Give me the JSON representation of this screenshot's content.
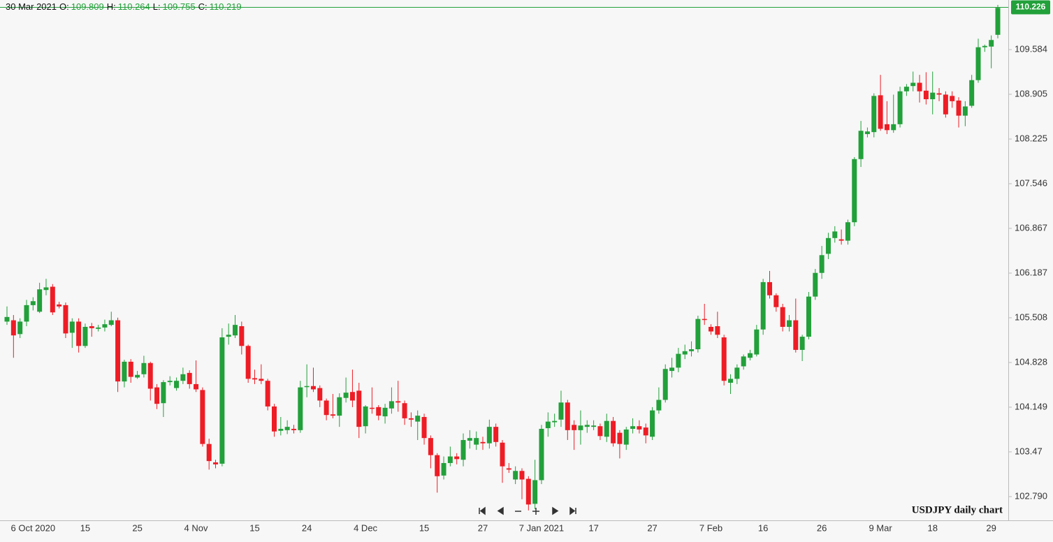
{
  "chart_data": {
    "type": "candlestick",
    "header_date": "30 Mar 2021",
    "header_labels": [
      "O:",
      "H:",
      "L:",
      "C:"
    ],
    "annotation": "USDJPY daily chart",
    "last_price": 110.226,
    "up_color": "#22a03a",
    "down_color": "#ee1c25",
    "last_price_color": "#22a03a",
    "ylim": [
      102.429,
      110.338
    ],
    "yticks": [
      {
        "value": 102.79,
        "label": "102.790"
      },
      103.47,
      104.149,
      104.828,
      105.508,
      106.187,
      106.867,
      107.546,
      108.225,
      108.905,
      109.584
    ],
    "categories": [
      null,
      null,
      null,
      null,
      "6 Oct 2020",
      null,
      null,
      null,
      null,
      null,
      null,
      null,
      "15",
      null,
      null,
      null,
      null,
      null,
      null,
      null,
      "25",
      null,
      null,
      null,
      null,
      null,
      null,
      null,
      null,
      "4 Nov",
      null,
      null,
      null,
      null,
      null,
      null,
      null,
      null,
      "15",
      null,
      null,
      null,
      null,
      null,
      null,
      null,
      "24",
      null,
      null,
      null,
      null,
      null,
      null,
      null,
      null,
      "4 Dec",
      null,
      null,
      null,
      null,
      null,
      null,
      null,
      null,
      "15",
      null,
      null,
      null,
      null,
      null,
      null,
      null,
      null,
      "27",
      null,
      null,
      null,
      null,
      null,
      null,
      null,
      null,
      "7 Jan 2021",
      null,
      null,
      null,
      null,
      null,
      null,
      null,
      "17",
      null,
      null,
      null,
      null,
      null,
      null,
      null,
      null,
      "27",
      null,
      null,
      null,
      null,
      null,
      null,
      null,
      null,
      "7 Feb",
      null,
      null,
      null,
      null,
      null,
      null,
      null,
      "16",
      null,
      null,
      null,
      null,
      null,
      null,
      null,
      null,
      "26",
      null,
      null,
      null,
      null,
      null,
      null,
      null,
      null,
      "9 Mar",
      null,
      null,
      null,
      null,
      null,
      null,
      null,
      "18",
      null,
      null,
      null,
      null,
      null,
      null,
      null,
      null,
      "29",
      null
    ],
    "open": [
      105.45,
      105.47,
      105.26,
      105.45,
      105.7,
      105.6,
      105.93,
      105.98,
      105.71,
      105.7,
      105.28,
      105.45,
      105.08,
      105.38,
      105.34,
      105.36,
      105.4,
      105.47,
      104.54,
      104.84,
      104.6,
      104.65,
      104.82,
      104.45,
      104.21,
      104.53,
      104.44,
      104.55,
      104.67,
      104.5,
      104.41,
      103.59,
      103.31,
      103.29,
      105.22,
      105.24,
      105.38,
      105.08,
      104.59,
      104.58,
      104.55,
      104.16,
      103.79,
      103.8,
      103.82,
      103.8,
      104.46,
      104.47,
      104.44,
      104.25,
      104.04,
      104.02,
      104.29,
      104.38,
      104.4,
      103.86,
      104.14,
      104.15,
      104.01,
      104.13,
      104.24,
      104.21,
      103.98,
      103.93,
      104.0,
      103.68,
      103.42,
      103.11,
      103.3,
      103.4,
      103.35,
      103.64,
      103.58,
      103.62,
      103.6,
      103.85,
      103.61,
      103.22,
      103.05,
      103.18,
      103.06,
      102.68,
      103.04,
      103.83,
      103.92,
      103.96,
      104.22,
      103.88,
      103.8,
      103.85,
      103.85,
      103.86,
      103.7,
      103.94,
      103.76,
      103.58,
      103.82,
      103.86,
      103.84,
      103.7,
      104.1,
      104.26,
      104.7,
      104.75,
      104.95,
      105.0,
      105.03,
      105.49,
      105.37,
      105.38,
      105.21,
      104.52,
      104.58,
      104.77,
      104.9,
      104.95,
      105.33,
      106.05,
      105.85,
      105.67,
      105.37,
      105.47,
      105.02,
      105.22,
      105.83,
      106.19,
      106.48,
      106.72,
      106.7,
      106.68,
      106.96,
      107.92,
      108.3,
      108.33,
      108.89,
      108.45,
      108.36,
      108.45,
      108.95,
      109.03,
      109.08,
      108.96,
      108.83,
      108.92,
      108.9,
      108.88,
      108.81,
      108.58,
      108.73,
      109.12,
      109.62,
      109.63,
      109.809
    ],
    "high": [
      105.68,
      105.55,
      105.5,
      105.78,
      105.82,
      106.04,
      106.1,
      106.02,
      105.75,
      105.74,
      105.5,
      105.5,
      105.42,
      105.43,
      105.4,
      105.48,
      105.6,
      105.51,
      104.87,
      104.88,
      104.7,
      104.93,
      104.84,
      104.5,
      104.56,
      104.62,
      104.6,
      104.75,
      104.71,
      104.86,
      104.45,
      103.67,
      103.35,
      105.35,
      105.42,
      105.55,
      105.45,
      105.1,
      104.72,
      104.8,
      104.58,
      104.2,
      104.0,
      103.95,
      103.88,
      104.55,
      104.8,
      104.75,
      104.48,
      104.28,
      104.35,
      104.36,
      104.6,
      104.72,
      104.52,
      104.18,
      104.45,
      104.18,
      104.2,
      104.45,
      104.55,
      104.25,
      104.07,
      104.1,
      104.05,
      103.72,
      103.45,
      103.4,
      103.55,
      103.45,
      103.75,
      103.8,
      103.78,
      103.7,
      103.96,
      103.9,
      103.65,
      103.3,
      103.25,
      103.22,
      103.1,
      103.35,
      103.88,
      104.07,
      104.05,
      104.4,
      104.26,
      103.95,
      104.1,
      103.95,
      103.95,
      103.9,
      104.05,
      104.0,
      103.8,
      103.85,
      103.98,
      103.95,
      103.9,
      104.15,
      104.45,
      104.8,
      104.9,
      105.05,
      105.1,
      105.15,
      105.54,
      105.72,
      105.41,
      105.6,
      105.25,
      104.65,
      104.8,
      104.95,
      105.02,
      105.4,
      106.1,
      106.22,
      105.88,
      105.72,
      105.55,
      105.8,
      105.25,
      105.9,
      106.25,
      106.6,
      106.8,
      106.9,
      106.85,
      107.0,
      107.95,
      108.5,
      108.4,
      108.92,
      109.2,
      108.8,
      108.9,
      109.02,
      109.06,
      109.25,
      109.2,
      109.24,
      109.25,
      109.0,
      108.95,
      108.95,
      108.86,
      108.8,
      109.2,
      109.75,
      109.66,
      109.8,
      110.264
    ],
    "low": [
      105.4,
      104.9,
      105.2,
      105.38,
      105.62,
      105.58,
      105.85,
      105.55,
      105.65,
      105.2,
      105.05,
      104.98,
      105.05,
      105.22,
      105.3,
      105.3,
      105.38,
      104.38,
      104.45,
      104.52,
      104.58,
      104.6,
      104.25,
      104.12,
      104.0,
      104.48,
      104.4,
      104.5,
      104.43,
      104.38,
      103.55,
      103.2,
      103.22,
      103.25,
      105.1,
      105.2,
      104.95,
      104.52,
      104.5,
      104.5,
      104.1,
      103.7,
      103.72,
      103.74,
      103.75,
      103.76,
      104.3,
      104.38,
      104.15,
      103.95,
      103.98,
      103.85,
      104.22,
      104.15,
      103.68,
      103.75,
      104.05,
      103.95,
      103.9,
      104.05,
      104.08,
      103.88,
      103.85,
      103.65,
      103.58,
      103.22,
      102.85,
      103.05,
      103.25,
      103.28,
      103.25,
      103.52,
      103.5,
      103.5,
      103.52,
      103.55,
      103.0,
      103.15,
      102.98,
      102.75,
      102.58,
      102.6,
      102.98,
      103.7,
      103.85,
      103.85,
      103.65,
      103.5,
      103.58,
      103.76,
      103.8,
      103.65,
      103.62,
      103.55,
      103.37,
      103.5,
      103.75,
      103.75,
      103.6,
      103.65,
      104.05,
      104.22,
      104.6,
      104.68,
      104.88,
      104.92,
      104.98,
      105.4,
      105.25,
      105.2,
      104.48,
      104.35,
      104.5,
      104.72,
      104.86,
      104.92,
      105.25,
      105.8,
      105.6,
      105.3,
      105.3,
      104.98,
      104.85,
      105.18,
      105.78,
      106.1,
      106.4,
      106.65,
      106.62,
      106.62,
      106.9,
      107.8,
      108.25,
      108.25,
      108.35,
      108.3,
      108.32,
      108.4,
      108.88,
      108.95,
      108.78,
      108.75,
      108.6,
      108.8,
      108.55,
      108.7,
      108.4,
      108.42,
      108.7,
      109.08,
      109.55,
      109.3,
      109.755
    ],
    "close": [
      105.52,
      105.24,
      105.45,
      105.7,
      105.76,
      105.94,
      105.97,
      105.59,
      105.68,
      105.27,
      105.45,
      105.08,
      105.37,
      105.35,
      105.36,
      105.41,
      105.47,
      104.54,
      104.84,
      104.61,
      104.64,
      104.82,
      104.43,
      104.2,
      104.53,
      104.55,
      104.55,
      104.65,
      104.5,
      104.42,
      103.59,
      103.33,
      103.28,
      105.21,
      105.25,
      105.4,
      105.08,
      104.58,
      104.57,
      104.55,
      104.16,
      103.78,
      103.82,
      103.85,
      103.8,
      104.45,
      104.47,
      104.42,
      104.25,
      104.03,
      104.02,
      104.3,
      104.37,
      104.25,
      103.85,
      104.16,
      104.13,
      104.02,
      104.14,
      104.24,
      104.22,
      103.98,
      103.96,
      104.02,
      103.68,
      103.42,
      103.1,
      103.3,
      103.4,
      103.36,
      103.65,
      103.68,
      103.68,
      103.6,
      103.85,
      103.62,
      103.25,
      103.2,
      103.18,
      103.05,
      102.67,
      103.04,
      103.82,
      103.93,
      103.94,
      104.22,
      103.8,
      103.8,
      103.87,
      103.88,
      103.87,
      103.71,
      103.94,
      103.6,
      103.59,
      103.81,
      103.86,
      103.81,
      103.72,
      104.1,
      104.26,
      104.73,
      104.75,
      104.96,
      105.0,
      105.03,
      105.49,
      105.48,
      105.3,
      105.25,
      104.55,
      104.58,
      104.75,
      104.92,
      104.97,
      105.33,
      106.05,
      105.85,
      105.67,
      105.37,
      105.47,
      105.02,
      105.22,
      105.83,
      106.19,
      106.46,
      106.72,
      106.82,
      106.68,
      106.96,
      107.92,
      108.35,
      108.34,
      108.88,
      108.38,
      108.36,
      108.45,
      108.95,
      109.02,
      109.08,
      108.95,
      108.83,
      108.93,
      108.9,
      108.6,
      108.8,
      108.58,
      108.72,
      109.12,
      109.62,
      109.64,
      109.73,
      110.219
    ]
  }
}
